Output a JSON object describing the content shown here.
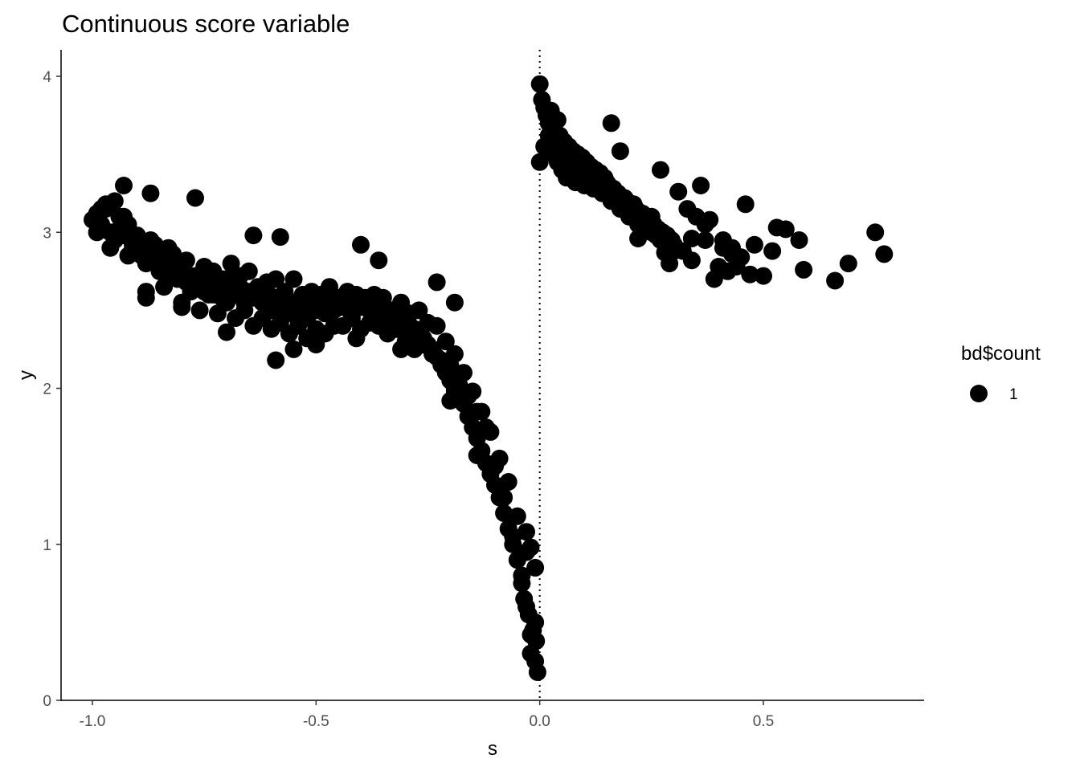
{
  "chart_data": {
    "type": "scatter",
    "title": "Continuous score variable",
    "xlabel": "s",
    "ylabel": "y",
    "xlim": [
      -1.1,
      0.85
    ],
    "ylim": [
      -0.05,
      4.15
    ],
    "x_ticks": [
      -1.0,
      -0.5,
      0.0,
      0.5
    ],
    "x_tick_labels": [
      "-1.0",
      "-0.5",
      "0.0",
      "0.5"
    ],
    "y_ticks": [
      0,
      1,
      2,
      3,
      4
    ],
    "y_tick_labels": [
      "0",
      "1",
      "2",
      "3",
      "4"
    ],
    "grid": false,
    "reference_line": {
      "x": 0,
      "style": "dotted"
    },
    "legend": {
      "title": "bd$count",
      "entries": [
        "1"
      ],
      "placement": "right"
    },
    "series": [
      {
        "color": "#000000",
        "x": [
          -1.0,
          -0.99,
          -0.98,
          -0.97,
          -0.96,
          -0.95,
          -0.94,
          -0.93,
          -0.92,
          -0.91,
          -0.9,
          -0.89,
          -0.88,
          -0.87,
          -0.86,
          -0.85,
          -0.84,
          -0.83,
          -0.82,
          -0.81,
          -0.8,
          -0.79,
          -0.78,
          -0.77,
          -0.76,
          -0.75,
          -0.74,
          -0.73,
          -0.72,
          -0.71,
          -0.7,
          -0.69,
          -0.68,
          -0.67,
          -0.66,
          -0.65,
          -0.64,
          -0.63,
          -0.62,
          -0.61,
          -0.6,
          -0.59,
          -0.58,
          -0.57,
          -0.56,
          -0.55,
          -0.54,
          -0.53,
          -0.52,
          -0.51,
          -0.5,
          -0.49,
          -0.48,
          -0.47,
          -0.46,
          -0.45,
          -0.44,
          -0.43,
          -0.42,
          -0.41,
          -0.4,
          -0.39,
          -0.38,
          -0.37,
          -0.36,
          -0.35,
          -0.34,
          -0.33,
          -0.32,
          -0.31,
          -0.3,
          -0.29,
          -0.28,
          -0.27,
          -0.26,
          -0.25,
          -0.24,
          -0.23,
          -0.22,
          -0.21,
          -0.2,
          -0.19,
          -0.18,
          -0.17,
          -0.16,
          -0.15,
          -0.14,
          -0.13,
          -0.12,
          -0.11,
          -0.1,
          -0.09,
          -0.08,
          -0.07,
          -0.06,
          -0.05,
          -0.04,
          -0.03,
          -0.02,
          -0.01,
          -0.99,
          -0.97,
          -0.95,
          -0.93,
          -0.91,
          -0.89,
          -0.87,
          -0.85,
          -0.83,
          -0.81,
          -0.79,
          -0.77,
          -0.75,
          -0.73,
          -0.71,
          -0.69,
          -0.67,
          -0.65,
          -0.63,
          -0.61,
          -0.59,
          -0.57,
          -0.55,
          -0.53,
          -0.51,
          -0.49,
          -0.47,
          -0.45,
          -0.43,
          -0.41,
          -0.39,
          -0.37,
          -0.35,
          -0.33,
          -0.31,
          -0.29,
          -0.27,
          -0.25,
          -0.23,
          -0.21,
          -0.19,
          -0.17,
          -0.15,
          -0.13,
          -0.11,
          -0.09,
          -0.07,
          -0.05,
          -0.03,
          -0.01,
          -0.98,
          -0.94,
          -0.9,
          -0.86,
          -0.82,
          -0.78,
          -0.74,
          -0.7,
          -0.66,
          -0.62,
          -0.58,
          -0.54,
          -0.5,
          -0.46,
          -0.42,
          -0.38,
          -0.34,
          -0.3,
          -0.26,
          -0.22,
          -0.18,
          -0.14,
          -0.1,
          -0.06,
          -0.02,
          -0.96,
          -0.92,
          -0.88,
          -0.84,
          -0.8,
          -0.76,
          -0.72,
          -0.68,
          -0.64,
          -0.6,
          -0.56,
          -0.52,
          -0.48,
          -0.44,
          -0.4,
          -0.36,
          -0.32,
          -0.28,
          -0.24,
          -0.2,
          -0.16,
          -0.12,
          -0.08,
          -0.04,
          -0.93,
          -0.87,
          -0.77,
          -0.64,
          -0.58,
          -0.4,
          -0.36,
          -0.23,
          -0.19,
          -0.88,
          -0.8,
          -0.7,
          -0.59,
          -0.55,
          -0.5,
          -0.41,
          -0.31,
          -0.2,
          -0.19,
          -0.14,
          -0.035,
          -0.025,
          -0.015,
          -0.008,
          -0.005,
          -0.01,
          -0.02,
          -0.03,
          0.0,
          0.005,
          0.01,
          0.015,
          0.02,
          0.025,
          0.03,
          0.035,
          0.04,
          0.045,
          0.05,
          0.055,
          0.06,
          0.065,
          0.07,
          0.075,
          0.08,
          0.085,
          0.09,
          0.095,
          0.1,
          0.105,
          0.11,
          0.115,
          0.12,
          0.125,
          0.13,
          0.135,
          0.14,
          0.145,
          0.15,
          0.155,
          0.16,
          0.165,
          0.17,
          0.175,
          0.18,
          0.185,
          0.19,
          0.195,
          0.2,
          0.205,
          0.21,
          0.215,
          0.22,
          0.225,
          0.23,
          0.235,
          0.24,
          0.245,
          0.25,
          0.255,
          0.26,
          0.265,
          0.27,
          0.275,
          0.28,
          0.285,
          0.29,
          0.295,
          0.3,
          0.0,
          0.01,
          0.02,
          0.03,
          0.04,
          0.05,
          0.06,
          0.07,
          0.08,
          0.09,
          0.1,
          0.11,
          0.12,
          0.13,
          0.14,
          0.15,
          0.16,
          0.17,
          0.18,
          0.19,
          0.2,
          0.21,
          0.22,
          0.23,
          0.24,
          0.25,
          0.16,
          0.18,
          0.22,
          0.27,
          0.28,
          0.29,
          0.3,
          0.32,
          0.33,
          0.34,
          0.35,
          0.36,
          0.37,
          0.38,
          0.39,
          0.4,
          0.41,
          0.42,
          0.43,
          0.44,
          0.45,
          0.46,
          0.47,
          0.5,
          0.52,
          0.53,
          0.55,
          0.58,
          0.59,
          0.66,
          0.69,
          0.75,
          0.77,
          0.31,
          0.34,
          0.37,
          0.41,
          0.43,
          0.48
        ],
        "y": [
          3.08,
          3.12,
          3.05,
          3.15,
          3.0,
          3.2,
          3.1,
          2.98,
          3.05,
          2.9,
          2.95,
          2.85,
          2.8,
          2.88,
          2.82,
          2.75,
          2.8,
          2.72,
          2.78,
          2.7,
          2.75,
          2.68,
          2.72,
          2.65,
          2.7,
          2.62,
          2.68,
          2.6,
          2.66,
          2.58,
          2.7,
          2.62,
          2.6,
          2.65,
          2.55,
          2.62,
          2.58,
          2.6,
          2.55,
          2.62,
          2.5,
          2.58,
          2.52,
          2.6,
          2.48,
          2.55,
          2.5,
          2.58,
          2.45,
          2.55,
          2.5,
          2.6,
          2.48,
          2.55,
          2.5,
          2.58,
          2.52,
          2.55,
          2.5,
          2.56,
          2.52,
          2.58,
          2.5,
          2.55,
          2.48,
          2.52,
          2.5,
          2.45,
          2.48,
          2.42,
          2.45,
          2.4,
          2.38,
          2.35,
          2.32,
          2.28,
          2.25,
          2.2,
          2.15,
          2.1,
          2.05,
          2.0,
          1.95,
          1.9,
          1.82,
          1.75,
          1.68,
          1.6,
          1.52,
          1.45,
          1.38,
          1.3,
          1.2,
          1.1,
          1.0,
          0.9,
          0.75,
          0.6,
          0.42,
          0.25,
          3.0,
          3.18,
          2.95,
          3.1,
          2.92,
          2.9,
          2.95,
          2.85,
          2.9,
          2.8,
          2.82,
          2.72,
          2.78,
          2.75,
          2.7,
          2.8,
          2.72,
          2.75,
          2.65,
          2.68,
          2.7,
          2.62,
          2.7,
          2.6,
          2.62,
          2.58,
          2.65,
          2.55,
          2.62,
          2.6,
          2.55,
          2.6,
          2.58,
          2.5,
          2.55,
          2.48,
          2.5,
          2.42,
          2.4,
          2.3,
          2.22,
          2.1,
          1.98,
          1.85,
          1.72,
          1.55,
          1.4,
          1.18,
          0.95,
          0.5,
          3.15,
          3.02,
          2.98,
          2.92,
          2.86,
          2.62,
          2.6,
          2.55,
          2.5,
          2.45,
          2.42,
          2.4,
          2.38,
          2.4,
          2.45,
          2.42,
          2.35,
          2.3,
          2.28,
          2.18,
          2.02,
          1.85,
          1.5,
          1.05,
          0.3,
          2.9,
          2.85,
          2.62,
          2.65,
          2.55,
          2.5,
          2.48,
          2.45,
          2.4,
          2.38,
          2.35,
          2.32,
          2.35,
          2.4,
          2.38,
          2.4,
          2.38,
          2.25,
          2.22,
          2.15,
          1.95,
          1.75,
          1.3,
          0.8,
          3.3,
          3.25,
          3.22,
          2.98,
          2.97,
          2.92,
          2.82,
          2.68,
          2.55,
          2.58,
          2.52,
          2.36,
          2.18,
          2.25,
          2.28,
          2.32,
          2.25,
          1.92,
          1.98,
          1.57,
          0.65,
          0.55,
          0.45,
          0.38,
          0.18,
          0.85,
          0.98,
          1.08,
          3.95,
          3.85,
          3.8,
          3.75,
          3.7,
          3.78,
          3.65,
          3.6,
          3.72,
          3.62,
          3.55,
          3.58,
          3.5,
          3.55,
          3.48,
          3.52,
          3.45,
          3.5,
          3.42,
          3.48,
          3.4,
          3.45,
          3.38,
          3.42,
          3.35,
          3.4,
          3.3,
          3.38,
          3.28,
          3.35,
          3.25,
          3.3,
          3.22,
          3.28,
          3.2,
          3.25,
          3.18,
          3.22,
          3.15,
          3.2,
          3.12,
          3.18,
          3.1,
          3.15,
          3.08,
          3.12,
          3.05,
          3.1,
          3.02,
          3.08,
          3.0,
          3.05,
          2.98,
          3.02,
          2.95,
          3.0,
          2.92,
          2.98,
          2.9,
          2.95,
          2.88,
          3.45,
          3.55,
          3.62,
          3.5,
          3.45,
          3.4,
          3.35,
          3.42,
          3.32,
          3.38,
          3.3,
          3.4,
          3.28,
          3.35,
          3.25,
          3.32,
          3.2,
          3.25,
          3.15,
          3.22,
          3.1,
          3.18,
          3.05,
          3.12,
          3.02,
          3.1,
          3.7,
          3.52,
          2.96,
          3.4,
          2.87,
          2.8,
          2.92,
          2.88,
          3.15,
          2.82,
          3.1,
          3.3,
          2.95,
          3.08,
          2.7,
          2.78,
          2.9,
          2.75,
          2.86,
          2.78,
          2.84,
          3.18,
          2.73,
          2.72,
          2.88,
          3.03,
          3.02,
          2.95,
          2.76,
          2.69,
          2.8,
          3.0,
          2.86,
          3.26,
          2.96,
          3.05,
          2.95,
          2.9,
          2.92
        ]
      }
    ]
  }
}
